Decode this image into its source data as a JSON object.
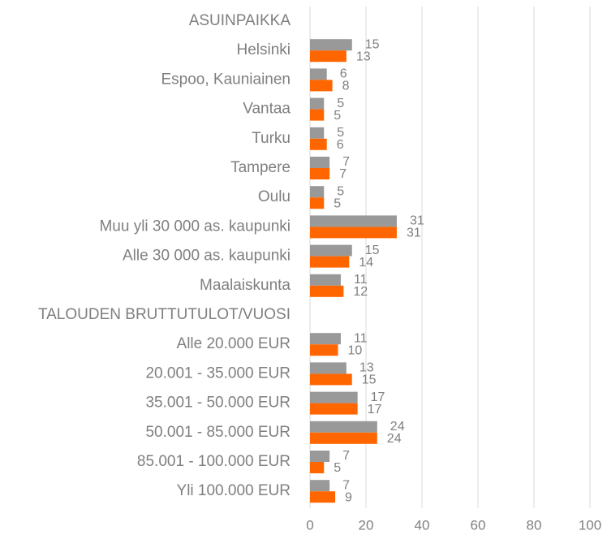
{
  "chart_data": {
    "type": "bar",
    "orientation": "horizontal",
    "categories": [
      "ASUINPAIKKA",
      "Helsinki",
      "Espoo, Kauniainen",
      "Vantaa",
      "Turku",
      "Tampere",
      "Oulu",
      "Muu yli 30 000 as. kaupunki",
      "Alle 30 000 as. kaupunki",
      "Maalaiskunta",
      "TALOUDEN BRUTTUTULOT/VUOSI",
      "Alle 20.000 EUR",
      "20.001 - 35.000 EUR",
      "35.001 - 50.000 EUR",
      "50.001 - 85.000 EUR",
      "85.001 - 100.000 EUR",
      "Yli 100.000 EUR"
    ],
    "series": [
      {
        "color": "#999999",
        "values": [
          null,
          15,
          6,
          5,
          5,
          7,
          5,
          31,
          15,
          11,
          null,
          11,
          13,
          17,
          24,
          7,
          7
        ]
      },
      {
        "color": "#ff6600",
        "values": [
          null,
          13,
          8,
          5,
          6,
          7,
          5,
          31,
          14,
          12,
          null,
          10,
          15,
          17,
          24,
          5,
          9
        ]
      }
    ],
    "xlim": [
      0,
      100
    ],
    "xticks": [
      0,
      20,
      40,
      60,
      80,
      100
    ],
    "grid": true
  }
}
